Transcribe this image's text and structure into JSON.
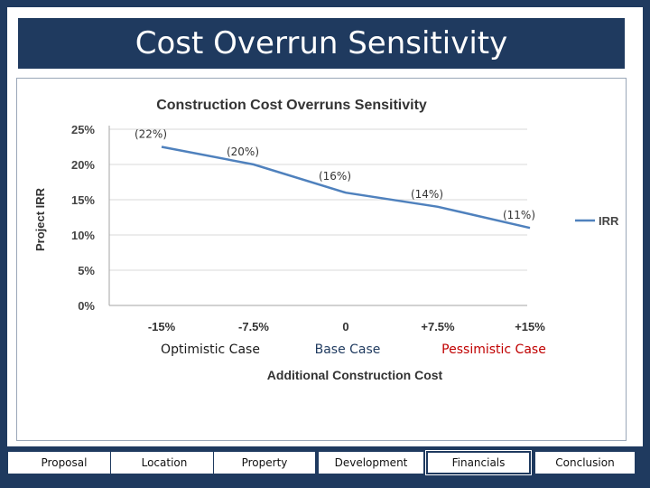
{
  "slide": {
    "title": "Cost Overrun Sensitivity"
  },
  "chart_data": {
    "type": "line",
    "title": "Construction Cost Overruns Sensitivity",
    "xlabel": "Additional Construction Cost",
    "ylabel": "Project IRR",
    "categories": [
      "-15%",
      "-7.5%",
      "0",
      "+7.5%",
      "+15%"
    ],
    "series": [
      {
        "name": "IRR",
        "values": [
          22.5,
          20,
          16,
          14,
          11
        ],
        "labels": [
          "(22%)",
          "(20%)",
          "(16%)",
          "(14%)",
          "(11%)"
        ],
        "color": "#4f81bd"
      }
    ],
    "ylim": [
      0,
      25
    ],
    "yticks": [
      "0%",
      "5%",
      "10%",
      "15%",
      "20%",
      "25%"
    ],
    "grid": true,
    "legend": "right",
    "case_labels": [
      {
        "text": "Optimistic Case",
        "color": "#1a1a1a"
      },
      {
        "text": "Base Case",
        "color": "#1f3a5f"
      },
      {
        "text": "Pessimistic Case",
        "color": "#c00000"
      }
    ]
  },
  "nav": {
    "items": [
      {
        "label": "Proposal"
      },
      {
        "label": "Location"
      },
      {
        "label": "Property"
      },
      {
        "label": "Development"
      },
      {
        "label": "Financials"
      },
      {
        "label": "Conclusion"
      }
    ],
    "active_index": 4
  }
}
